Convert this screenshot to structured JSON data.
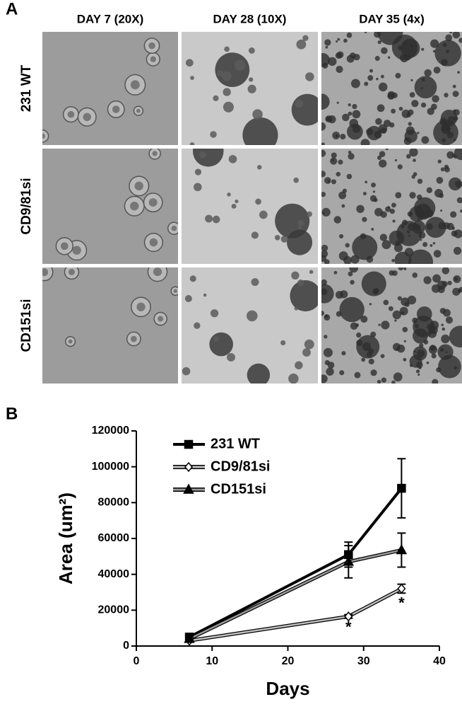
{
  "panel_a": {
    "label": "A",
    "columns": [
      "DAY 7 (20X)",
      "DAY 28 (10X)",
      "DAY 35 (4x)"
    ],
    "rows": [
      "231 WT",
      "CD9/81si",
      "CD151si"
    ]
  },
  "chart_data": {
    "type": "line",
    "panel_label": "B",
    "x_label": "Days",
    "y_label": "Area (um²)",
    "x": [
      7,
      28,
      35
    ],
    "series": [
      {
        "name": "231 WT",
        "color": "#000000",
        "marker": "square",
        "values": [
          5000,
          51000,
          88000
        ],
        "errors": [
          1500,
          7000,
          16500
        ]
      },
      {
        "name": "CD9/81si",
        "color": "#c0c0c0",
        "marker": "diamond",
        "values": [
          3000,
          16500,
          32000
        ],
        "errors": [
          500,
          1000,
          2500
        ]
      },
      {
        "name": "CD151si",
        "color": "#9a9a9a",
        "marker": "triangle",
        "values": [
          4000,
          47000,
          53500
        ],
        "errors": [
          1000,
          9000,
          9500
        ]
      }
    ],
    "annotations": [
      {
        "text": "*",
        "x": 28,
        "y": 10000
      },
      {
        "text": "*",
        "x": 35,
        "y": 23500
      }
    ],
    "xlim": [
      0,
      40
    ],
    "xticks": [
      0,
      10,
      20,
      30,
      40
    ],
    "ylim": [
      0,
      120000
    ],
    "yticks": [
      0,
      20000,
      40000,
      60000,
      80000,
      100000,
      120000
    ]
  }
}
